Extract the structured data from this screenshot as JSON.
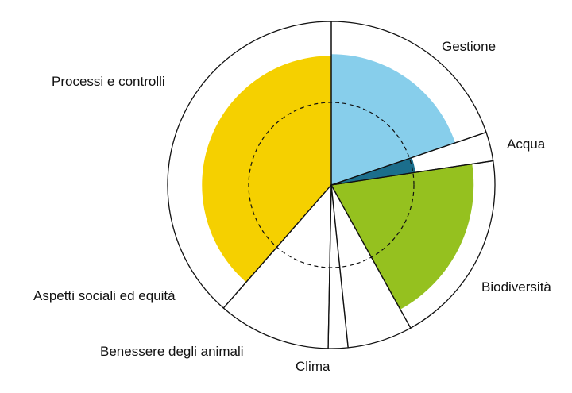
{
  "chart_data": {
    "type": "polar-area",
    "title": "",
    "reference_circle": "dashed",
    "categories": [
      "Gestione",
      "Acqua",
      "Biodiversità",
      "Clima",
      "Benessere degli animali",
      "Aspetti sociali ed equità",
      "Processi e controlli"
    ],
    "segments": [
      {
        "name": "Gestione",
        "span_degrees": 71.2,
        "value": 0.8,
        "color": "#87CEEB"
      },
      {
        "name": "Acqua",
        "span_degrees": 10.3,
        "value": 0.52,
        "color": "#1B6E8C"
      },
      {
        "name": "Biodiversità",
        "span_degrees": 69.5,
        "value": 0.87,
        "color": "#95C11F"
      },
      {
        "name": "Clima",
        "span_degrees": 23.1,
        "value": 0.0,
        "color": "#ffffff"
      },
      {
        "name": "Benessere degli animali",
        "span_degrees": 7.0,
        "value": 0.0,
        "color": "#ffffff"
      },
      {
        "name": "Aspetti sociali ed equità",
        "span_degrees": 40.1,
        "value": 0.0,
        "color": "#ffffff"
      },
      {
        "name": "Processi e controlli",
        "span_degrees": 138.8,
        "value": 0.79,
        "color": "#F5D000"
      }
    ]
  }
}
